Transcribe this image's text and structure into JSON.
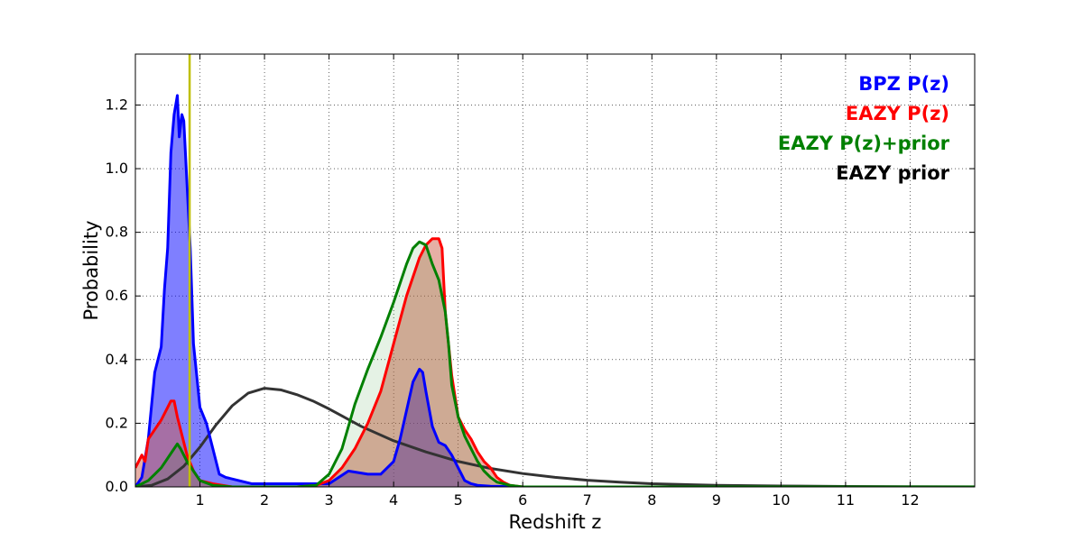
{
  "chart_data": {
    "type": "area",
    "xlabel": "Redshift z",
    "ylabel": "Probability",
    "xlim": [
      0,
      13
    ],
    "ylim": [
      0,
      1.36
    ],
    "x_ticks": [
      1,
      2,
      3,
      4,
      5,
      6,
      7,
      8,
      9,
      10,
      11,
      12
    ],
    "y_ticks": [
      0.0,
      0.2,
      0.4,
      0.6,
      0.8,
      1.0,
      1.2
    ],
    "grid": true,
    "grid_style": "dotted",
    "legend_position": "top-right",
    "vertical_line": {
      "x": 0.84,
      "color": "#bfbf00"
    },
    "series": [
      {
        "name": "EAZY prior",
        "color": "#333333",
        "fill": null,
        "x": [
          0.0,
          0.25,
          0.5,
          0.75,
          1.0,
          1.25,
          1.5,
          1.75,
          2.0,
          2.25,
          2.5,
          2.75,
          3.0,
          3.5,
          4.0,
          4.5,
          5.0,
          5.5,
          6.0,
          6.5,
          7.0,
          7.5,
          8.0,
          9.0,
          10.0,
          11.0,
          12.0,
          13.0
        ],
        "y": [
          0.0,
          0.005,
          0.025,
          0.065,
          0.125,
          0.195,
          0.255,
          0.295,
          0.31,
          0.305,
          0.29,
          0.27,
          0.245,
          0.19,
          0.145,
          0.11,
          0.08,
          0.058,
          0.042,
          0.03,
          0.021,
          0.015,
          0.01,
          0.005,
          0.003,
          0.0015,
          0.0008,
          0.0004
        ]
      },
      {
        "name": "BPZ P(z)",
        "color": "#0000ff",
        "fill": "rgba(0,0,255,0.5)",
        "x": [
          0.0,
          0.1,
          0.2,
          0.3,
          0.4,
          0.45,
          0.5,
          0.55,
          0.6,
          0.65,
          0.68,
          0.72,
          0.75,
          0.8,
          0.85,
          0.9,
          1.0,
          1.1,
          1.2,
          1.3,
          1.4,
          1.6,
          1.8,
          2.0,
          2.5,
          3.0,
          3.3,
          3.6,
          3.8,
          4.0,
          4.1,
          4.2,
          4.3,
          4.4,
          4.45,
          4.5,
          4.6,
          4.7,
          4.8,
          4.9,
          5.0,
          5.1,
          5.2,
          5.3,
          5.5,
          6.0,
          8.0,
          10.0,
          12.0,
          13.0
        ],
        "y": [
          0.0,
          0.03,
          0.15,
          0.36,
          0.44,
          0.62,
          0.75,
          1.05,
          1.17,
          1.23,
          1.1,
          1.17,
          1.15,
          0.95,
          0.75,
          0.45,
          0.25,
          0.2,
          0.12,
          0.04,
          0.03,
          0.02,
          0.01,
          0.01,
          0.01,
          0.01,
          0.05,
          0.04,
          0.04,
          0.08,
          0.15,
          0.24,
          0.33,
          0.37,
          0.36,
          0.3,
          0.19,
          0.14,
          0.13,
          0.1,
          0.06,
          0.02,
          0.01,
          0.005,
          0.002,
          0.0,
          0.0,
          0.0,
          0.0,
          0.0
        ]
      },
      {
        "name": "EAZY P(z)",
        "color": "#ff0000",
        "fill": "rgba(205,95,75,0.5)",
        "x": [
          0.0,
          0.05,
          0.1,
          0.15,
          0.2,
          0.3,
          0.4,
          0.5,
          0.55,
          0.6,
          0.65,
          0.7,
          0.8,
          0.9,
          1.0,
          1.2,
          1.5,
          2.0,
          2.5,
          2.8,
          3.0,
          3.2,
          3.4,
          3.6,
          3.8,
          4.0,
          4.2,
          4.4,
          4.5,
          4.6,
          4.65,
          4.7,
          4.75,
          4.8,
          4.9,
          5.0,
          5.1,
          5.2,
          5.3,
          5.4,
          5.5,
          5.6,
          5.7,
          5.8,
          6.0,
          7.0,
          13.0
        ],
        "y": [
          0.06,
          0.08,
          0.1,
          0.08,
          0.15,
          0.18,
          0.21,
          0.25,
          0.27,
          0.27,
          0.22,
          0.18,
          0.1,
          0.05,
          0.02,
          0.01,
          0.0,
          0.0,
          0.0,
          0.005,
          0.02,
          0.06,
          0.12,
          0.2,
          0.3,
          0.45,
          0.6,
          0.72,
          0.76,
          0.78,
          0.78,
          0.78,
          0.75,
          0.55,
          0.35,
          0.22,
          0.18,
          0.15,
          0.11,
          0.08,
          0.06,
          0.03,
          0.015,
          0.005,
          0.0,
          0.0,
          0.0
        ]
      },
      {
        "name": "EAZY P(z)+prior",
        "color": "#008000",
        "fill": "rgba(0,128,0,0.1)",
        "x": [
          0.0,
          0.2,
          0.3,
          0.4,
          0.5,
          0.6,
          0.65,
          0.7,
          0.8,
          0.9,
          1.0,
          1.2,
          1.5,
          2.0,
          2.5,
          2.8,
          3.0,
          3.2,
          3.4,
          3.6,
          3.7,
          3.8,
          4.0,
          4.1,
          4.2,
          4.3,
          4.4,
          4.5,
          4.6,
          4.7,
          4.8,
          4.85,
          4.9,
          5.0,
          5.1,
          5.2,
          5.3,
          5.4,
          5.5,
          5.6,
          5.8,
          6.0,
          13.0
        ],
        "y": [
          0.0,
          0.02,
          0.04,
          0.06,
          0.09,
          0.12,
          0.135,
          0.12,
          0.08,
          0.05,
          0.02,
          0.005,
          0.0,
          0.0,
          0.0,
          0.005,
          0.04,
          0.12,
          0.26,
          0.37,
          0.42,
          0.47,
          0.58,
          0.64,
          0.7,
          0.75,
          0.77,
          0.76,
          0.7,
          0.65,
          0.55,
          0.45,
          0.32,
          0.22,
          0.16,
          0.12,
          0.08,
          0.05,
          0.03,
          0.015,
          0.005,
          0.0,
          0.0
        ]
      }
    ],
    "legend_order": [
      "BPZ P(z)",
      "EAZY P(z)",
      "EAZY P(z)+prior",
      "EAZY prior"
    ],
    "legend_colors": [
      "#0000ff",
      "#ff0000",
      "#008000",
      "#000000"
    ]
  }
}
